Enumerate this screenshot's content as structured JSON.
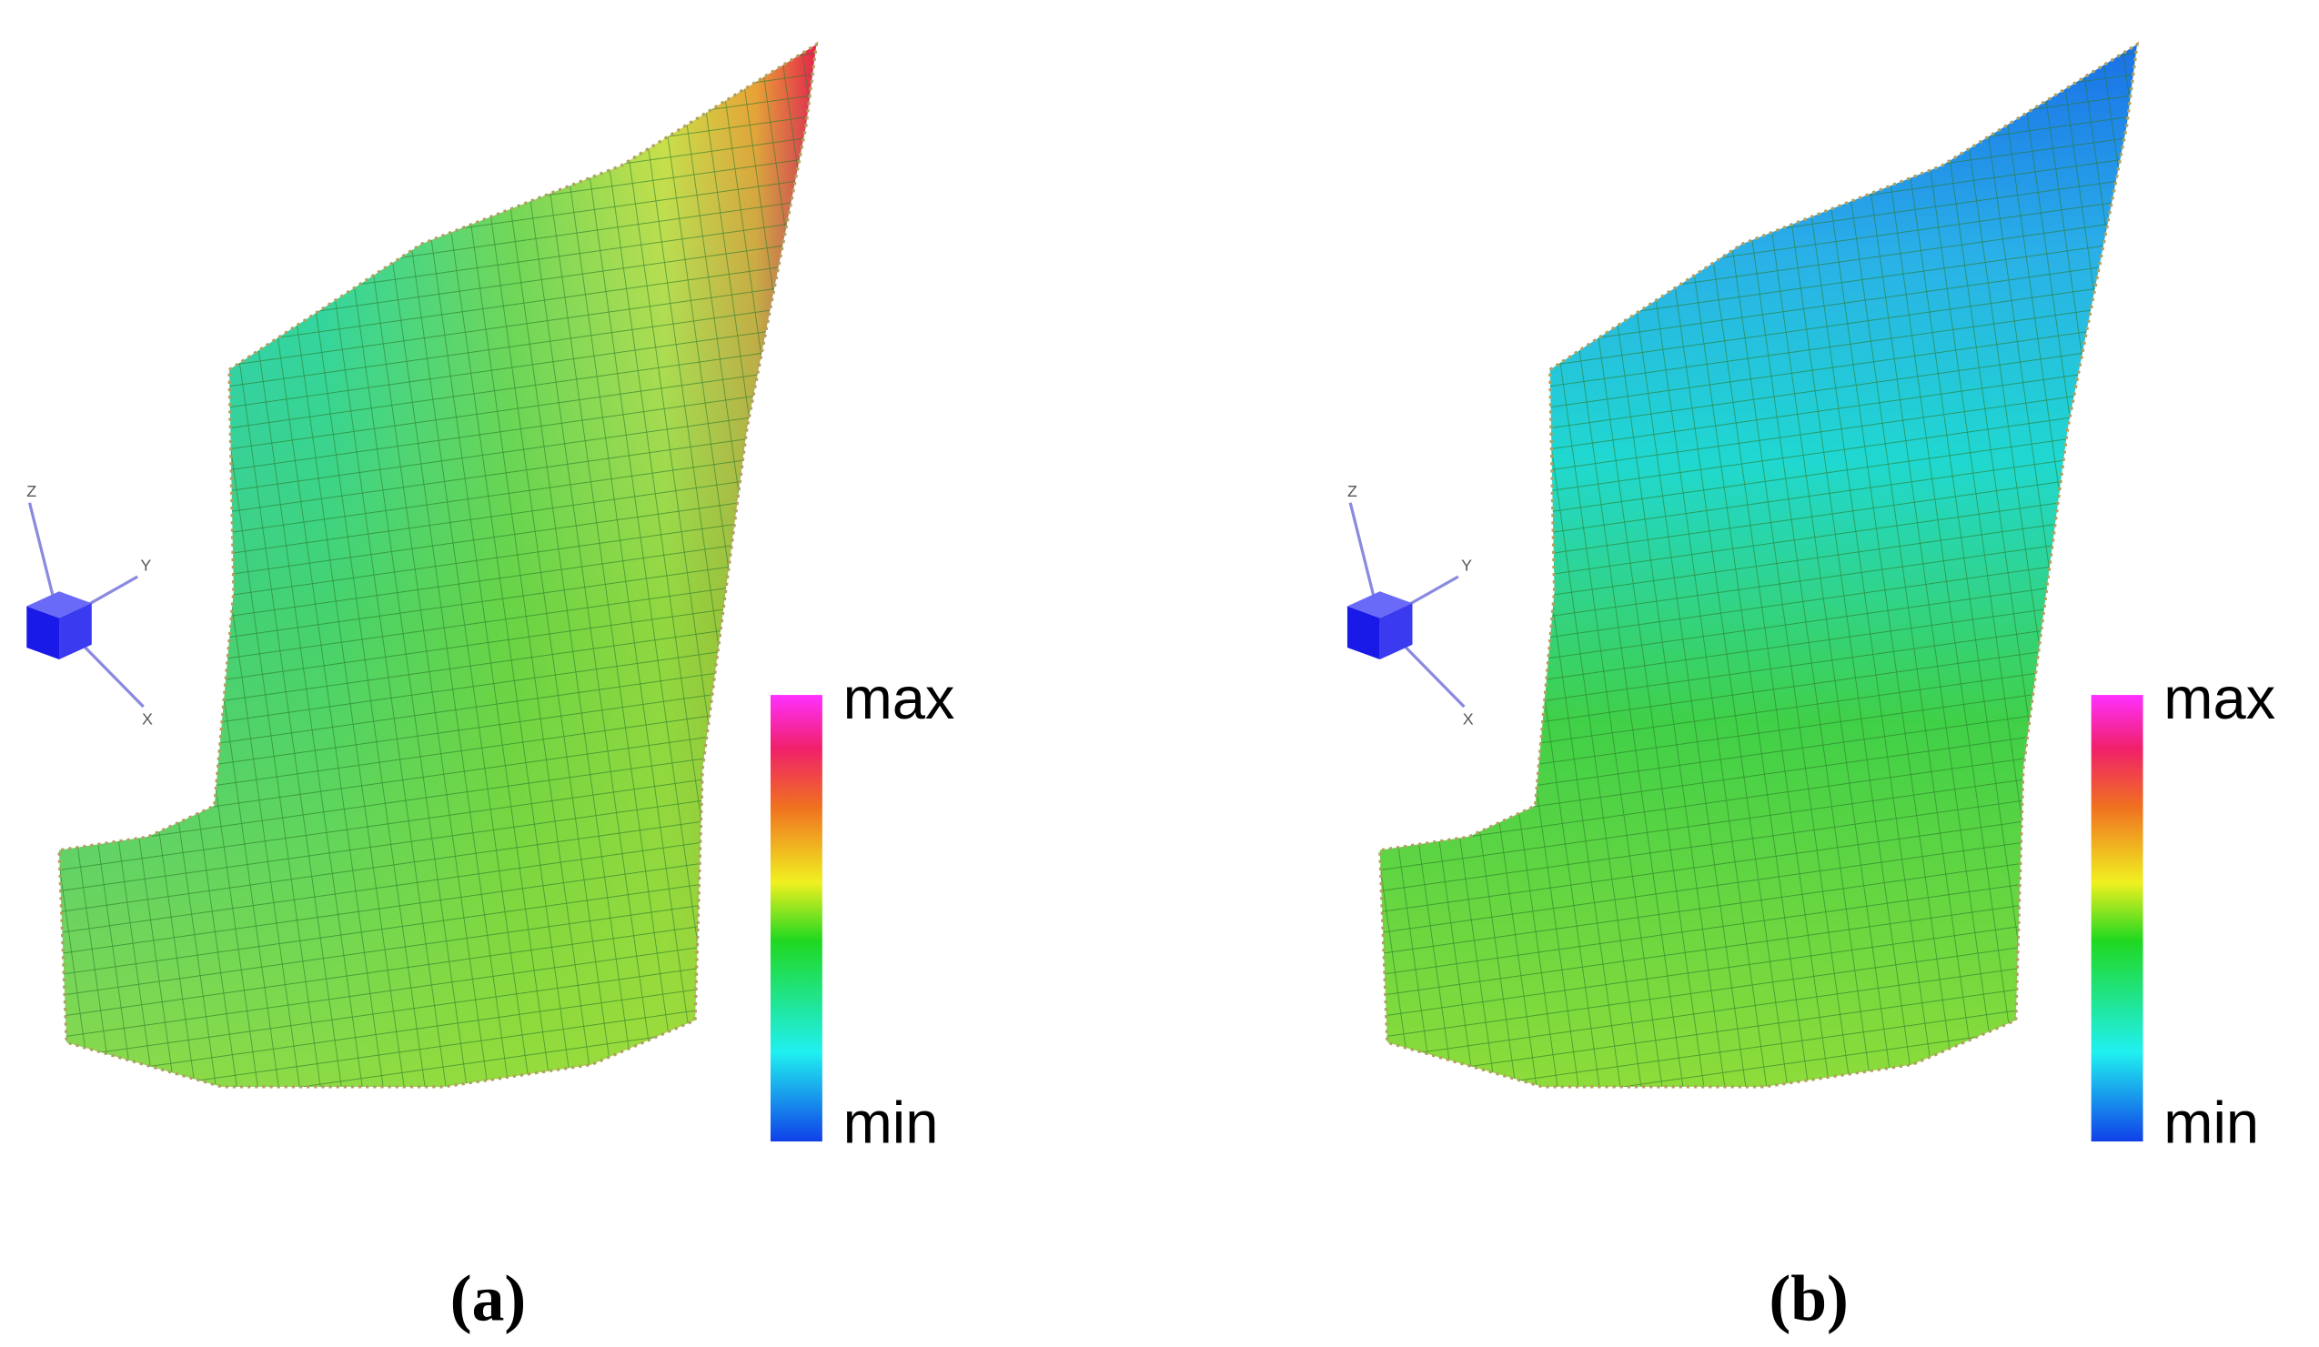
{
  "panels": [
    {
      "caption": "(a)",
      "colorbar": {
        "max": "max",
        "min": "min"
      },
      "axes": {
        "z": "Z",
        "y": "Y",
        "x": "X"
      }
    },
    {
      "caption": "(b)",
      "colorbar": {
        "max": "max",
        "min": "min"
      },
      "axes": {
        "z": "Z",
        "y": "Y",
        "x": "X"
      }
    }
  ]
}
